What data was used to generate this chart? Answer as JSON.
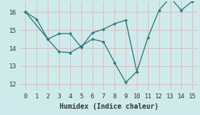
{
  "line1_x": [
    0,
    1,
    2,
    3,
    4,
    5,
    6,
    7,
    8,
    9,
    10,
    11,
    12,
    13,
    14,
    15
  ],
  "line1_y": [
    16.0,
    15.6,
    14.5,
    13.8,
    13.75,
    14.1,
    14.5,
    14.35,
    13.2,
    12.1,
    12.7,
    14.6,
    16.1,
    16.8,
    16.1,
    16.6
  ],
  "line2_x": [
    0,
    2,
    3,
    4,
    5,
    6,
    7,
    8,
    9,
    10
  ],
  "line2_y": [
    16.0,
    14.5,
    14.8,
    14.8,
    14.05,
    14.85,
    15.05,
    15.35,
    15.55,
    12.7
  ],
  "color": "#2e7d7d",
  "bg_color": "#ceeaea",
  "grid_color": "#e8b8b8",
  "xlabel": "Humidex (Indice chaleur)",
  "xlim": [
    -0.5,
    15.5
  ],
  "ylim": [
    11.7,
    16.6
  ],
  "xticks": [
    0,
    1,
    2,
    3,
    4,
    5,
    6,
    7,
    8,
    9,
    10,
    11,
    12,
    13,
    14,
    15
  ],
  "yticks": [
    12,
    13,
    14,
    15,
    16
  ],
  "marker": "D",
  "markersize": 2.5,
  "linewidth": 1.0,
  "xlabel_fontsize": 7,
  "tick_fontsize": 6.5
}
